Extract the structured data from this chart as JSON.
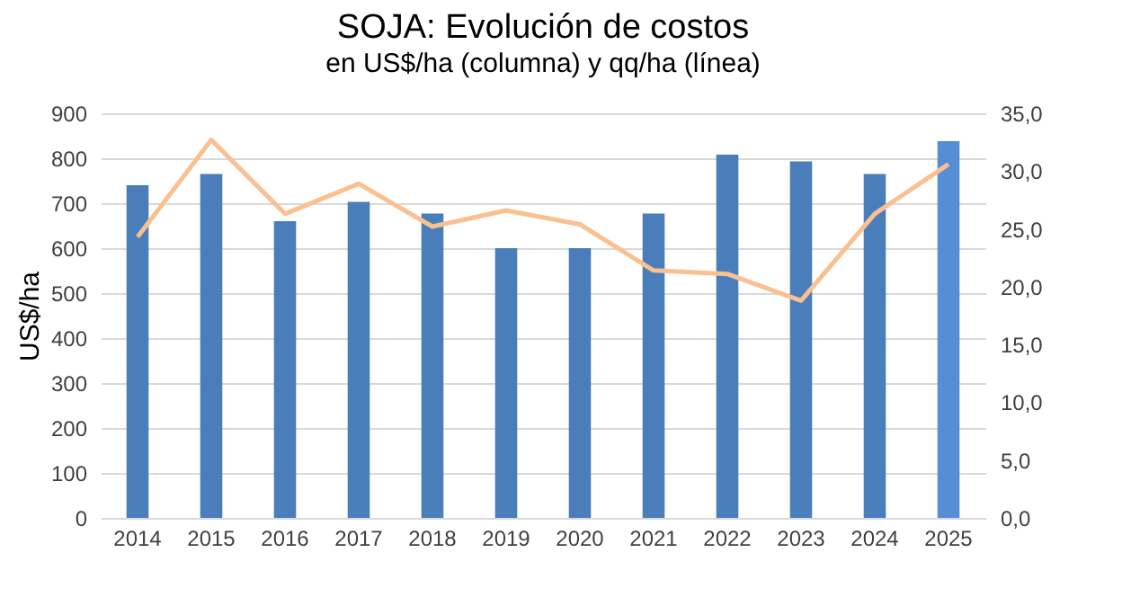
{
  "chart_data": {
    "type": "bar",
    "title": "SOJA: Evolución de costos",
    "subtitle": "en US$/ha (columna) y qq/ha (línea)",
    "ylabel": "US$/ha",
    "categories": [
      "2014",
      "2015",
      "2016",
      "2017",
      "2018",
      "2019",
      "2020",
      "2021",
      "2022",
      "2023",
      "2024",
      "2025"
    ],
    "series": [
      {
        "colors": [
          "#4a7ebb",
          "#4a7ebb",
          "#4a7ebb",
          "#4a7ebb",
          "#4a7ebb",
          "#4a7ebb",
          "#4a7ebb",
          "#4a7ebb",
          "#4a7ebb",
          "#4a7ebb",
          "#4a7ebb",
          "#558ed5"
        ],
        "values": [
          740,
          765,
          660,
          703,
          677,
          600,
          600,
          677,
          808,
          793,
          765,
          838
        ]
      },
      {
        "type": "line",
        "axis": "y2",
        "color": "#fac090",
        "values": [
          24.3,
          32.7,
          26.3,
          28.9,
          25.2,
          26.6,
          25.4,
          21.4,
          21.1,
          18.8,
          26.3,
          30.6
        ]
      }
    ],
    "ylim": [
      0,
      900
    ],
    "yticks": [
      0,
      100,
      200,
      300,
      400,
      500,
      600,
      700,
      800,
      900
    ],
    "y2lim": [
      0,
      35
    ],
    "y2ticks": [
      {
        "value": 0,
        "label": "0,0"
      },
      {
        "value": 5,
        "label": "5,0"
      },
      {
        "value": 10,
        "label": "10,0"
      },
      {
        "value": 15,
        "label": "15,0"
      },
      {
        "value": 20,
        "label": "20,0"
      },
      {
        "value": 25,
        "label": "25,0"
      },
      {
        "value": 30,
        "label": "30,0"
      },
      {
        "value": 35,
        "label": "35,0"
      }
    ],
    "grid": "y"
  }
}
